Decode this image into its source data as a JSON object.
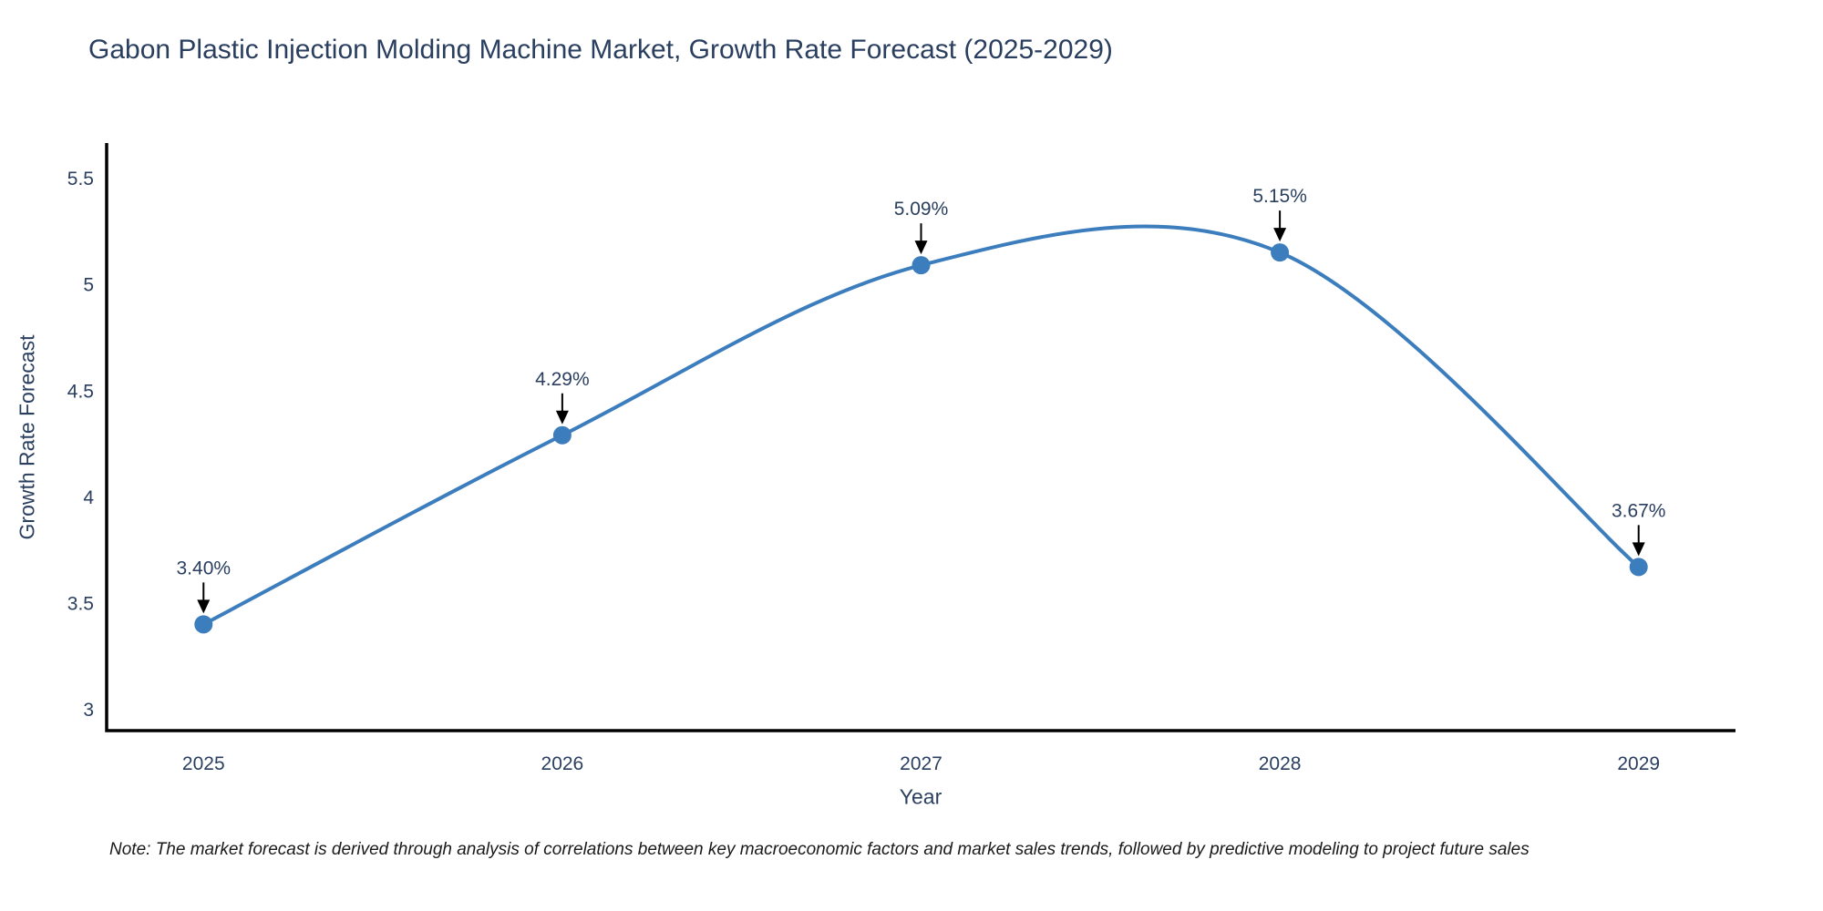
{
  "page": {
    "background": "#ffffff"
  },
  "chart_data": {
    "type": "line",
    "title": "Gabon Plastic Injection Molding Machine Market, Growth Rate Forecast (2025-2029)",
    "xlabel": "Year",
    "ylabel": "Growth Rate Forecast",
    "x": [
      2025,
      2026,
      2027,
      2028,
      2029
    ],
    "values": [
      3.4,
      4.29,
      5.09,
      5.15,
      3.67
    ],
    "point_labels": [
      "3.40%",
      "4.29%",
      "5.09%",
      "5.15%",
      "3.67%"
    ],
    "x_ticks": [
      2025,
      2026,
      2027,
      2028,
      2029
    ],
    "y_ticks": [
      3,
      3.5,
      4,
      4.5,
      5,
      5.5
    ],
    "xlim": [
      2024.73,
      2029.27
    ],
    "ylim": [
      2.9,
      5.665
    ],
    "grid": false,
    "legend": "none",
    "line_shape": "spline",
    "colors": {
      "line": "#3c7dbd",
      "marker": "#3c7dbd",
      "axis": "#000000",
      "text": "#2a3f5f",
      "arrow": "#000000"
    }
  },
  "note": {
    "text": "Note: The market forecast is derived through analysis of correlations between key macroeconomic factors and market sales trends, followed by predictive modeling to project future sales"
  }
}
